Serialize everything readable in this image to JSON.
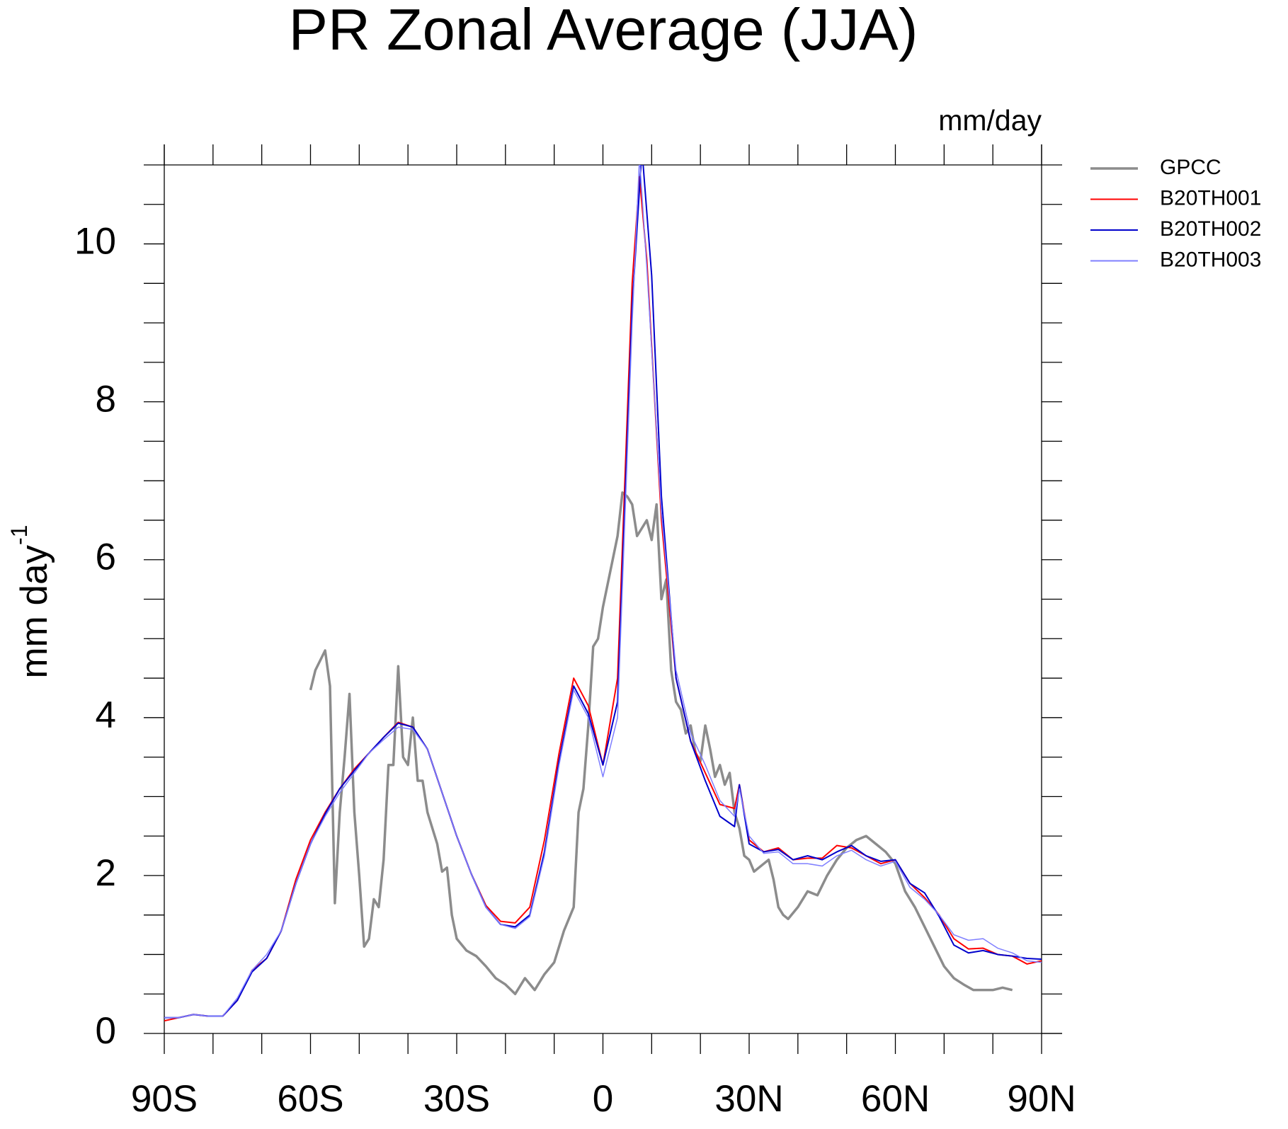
{
  "chart_data": {
    "type": "line",
    "title": "PR Zonal Average (JJA)",
    "units": "mm/day",
    "y_label": "mm day",
    "y_label_superscript": "-1",
    "xlim": [
      -90,
      90
    ],
    "xticks": [
      {
        "value": -90,
        "label": "90S"
      },
      {
        "value": -60,
        "label": "60S"
      },
      {
        "value": -30,
        "label": "30S"
      },
      0,
      {
        "value": 30,
        "label": "30N"
      },
      {
        "value": 60,
        "label": "60N"
      },
      {
        "value": 90,
        "label": "90N"
      }
    ],
    "xminorticks": [
      -80,
      -70,
      -50,
      -40,
      -20,
      -10,
      10,
      20,
      40,
      50,
      70,
      80
    ],
    "ylim": [
      0,
      11
    ],
    "yticks": [
      0,
      2,
      4,
      6,
      8,
      10
    ],
    "yminorticks": [
      0.5,
      1,
      1.5,
      2.5,
      3,
      3.5,
      4.5,
      5,
      5.5,
      6.5,
      7,
      7.5,
      8.5,
      9,
      9.5,
      10.5,
      11
    ],
    "legend": "outside-top-right",
    "series": [
      {
        "name": "GPCC",
        "color": "#8c8c8c",
        "x": [
          -60,
          -59,
          -57,
          -56,
          -55,
          -54,
          -53,
          -52,
          -51,
          -50,
          -49,
          -48,
          -47,
          -46,
          -45,
          -44,
          -43,
          -42,
          -41,
          -40,
          -39,
          -38,
          -37,
          -36,
          -35,
          -34,
          -33,
          -32,
          -31,
          -30,
          -28,
          -26,
          -24,
          -22,
          -20,
          -18,
          -16,
          -14,
          -12,
          -10,
          -8,
          -6,
          -5,
          -4,
          -3,
          -2,
          -1,
          0,
          1,
          2,
          3,
          4,
          5,
          6,
          7,
          8,
          9,
          10,
          11,
          12,
          13,
          14,
          15,
          16,
          17,
          18,
          19,
          20,
          21,
          22,
          23,
          24,
          25,
          26,
          27,
          28,
          29,
          30,
          31,
          33,
          34,
          35,
          36,
          37,
          38,
          40,
          42,
          44,
          46,
          48,
          50,
          52,
          54,
          56,
          58,
          60,
          62,
          64,
          66,
          68,
          70,
          72,
          74,
          76,
          78,
          80,
          82,
          84
        ],
        "values": [
          4.35,
          4.6,
          4.85,
          4.4,
          1.65,
          2.8,
          3.5,
          4.3,
          2.8,
          2.0,
          1.1,
          1.2,
          1.7,
          1.6,
          2.2,
          3.4,
          3.4,
          4.65,
          3.5,
          3.4,
          4.0,
          3.2,
          3.2,
          2.8,
          2.6,
          2.4,
          2.05,
          2.1,
          1.5,
          1.2,
          1.05,
          0.98,
          0.85,
          0.7,
          0.62,
          0.5,
          0.7,
          0.55,
          0.75,
          0.9,
          1.3,
          1.6,
          2.8,
          3.1,
          3.9,
          4.9,
          5.0,
          5.4,
          5.7,
          6.0,
          6.3,
          6.85,
          6.8,
          6.7,
          6.3,
          6.4,
          6.5,
          6.25,
          6.7,
          5.5,
          5.75,
          4.6,
          4.2,
          4.1,
          3.8,
          3.9,
          3.55,
          3.45,
          3.9,
          3.6,
          3.25,
          3.4,
          3.15,
          3.3,
          2.8,
          2.6,
          2.25,
          2.2,
          2.05,
          2.15,
          2.2,
          1.95,
          1.6,
          1.5,
          1.45,
          1.6,
          1.8,
          1.75,
          2.0,
          2.2,
          2.35,
          2.45,
          2.5,
          2.4,
          2.3,
          2.15,
          1.8,
          1.6,
          1.35,
          1.1,
          0.85,
          0.7,
          0.62,
          0.55,
          0.55,
          0.55,
          0.58,
          0.55
        ]
      },
      {
        "name": "B20TH001",
        "color": "#ff0000",
        "x": [
          -90,
          -87,
          -84,
          -81,
          -78,
          -75,
          -72,
          -69,
          -66,
          -63,
          -60,
          -57,
          -54,
          -51,
          -48,
          -45,
          -42,
          -39,
          -36,
          -33,
          -30,
          -27,
          -24,
          -21,
          -18,
          -15,
          -12,
          -9,
          -6,
          -3,
          0,
          3,
          6,
          7.5,
          9,
          12,
          15,
          18,
          21,
          24,
          27,
          28,
          30,
          33,
          36,
          39,
          42,
          45,
          48,
          51,
          54,
          57,
          60,
          63,
          66,
          69,
          72,
          75,
          78,
          81,
          84,
          87,
          90
        ],
        "values": [
          0.16,
          0.2,
          0.24,
          0.22,
          0.22,
          0.42,
          0.8,
          0.95,
          1.3,
          1.95,
          2.45,
          2.8,
          3.1,
          3.35,
          3.55,
          3.75,
          3.94,
          3.88,
          3.6,
          3.05,
          2.5,
          2.02,
          1.62,
          1.42,
          1.4,
          1.6,
          2.45,
          3.55,
          4.5,
          4.15,
          3.4,
          4.5,
          9.5,
          10.85,
          9.8,
          6.5,
          4.5,
          3.7,
          3.3,
          2.9,
          2.85,
          3.15,
          2.45,
          2.3,
          2.35,
          2.2,
          2.22,
          2.22,
          2.38,
          2.35,
          2.25,
          2.15,
          2.2,
          1.9,
          1.72,
          1.5,
          1.2,
          1.07,
          1.08,
          1.0,
          0.98,
          0.88,
          0.92
        ]
      },
      {
        "name": "B20TH002",
        "color": "#0000cc",
        "x": [
          -90,
          -87,
          -84,
          -81,
          -78,
          -75,
          -72,
          -69,
          -66,
          -63,
          -60,
          -57,
          -54,
          -51,
          -48,
          -45,
          -42,
          -39,
          -36,
          -33,
          -30,
          -27,
          -24,
          -21,
          -18,
          -15,
          -12,
          -9,
          -6,
          -3,
          0,
          3,
          6,
          8,
          10,
          12,
          15,
          18,
          21,
          24,
          27,
          28,
          30,
          33,
          36,
          39,
          42,
          45,
          48,
          51,
          54,
          57,
          60,
          63,
          66,
          69,
          72,
          75,
          78,
          81,
          84,
          87,
          90
        ],
        "values": [
          0.2,
          0.2,
          0.24,
          0.22,
          0.22,
          0.42,
          0.78,
          0.95,
          1.3,
          1.9,
          2.4,
          2.78,
          3.1,
          3.33,
          3.55,
          3.75,
          3.93,
          3.88,
          3.6,
          3.05,
          2.5,
          2.02,
          1.6,
          1.38,
          1.35,
          1.5,
          2.3,
          3.45,
          4.4,
          4.05,
          3.4,
          4.2,
          9.2,
          11.2,
          9.6,
          6.8,
          4.5,
          3.7,
          3.2,
          2.75,
          2.62,
          3.15,
          2.4,
          2.3,
          2.33,
          2.2,
          2.25,
          2.2,
          2.3,
          2.38,
          2.25,
          2.18,
          2.2,
          1.9,
          1.78,
          1.48,
          1.12,
          1.02,
          1.05,
          1.0,
          0.98,
          0.95,
          0.94
        ]
      },
      {
        "name": "B20TH003",
        "color": "#7f7fff",
        "x": [
          -90,
          -87,
          -84,
          -81,
          -78,
          -75,
          -72,
          -69,
          -66,
          -63,
          -60,
          -57,
          -54,
          -51,
          -48,
          -45,
          -42,
          -39,
          -36,
          -33,
          -30,
          -27,
          -24,
          -21,
          -18,
          -15,
          -12,
          -9,
          -6,
          -3,
          0,
          3,
          6,
          7.5,
          9,
          12,
          15,
          18,
          21,
          24,
          27,
          28,
          30,
          33,
          36,
          39,
          42,
          45,
          48,
          51,
          54,
          57,
          60,
          63,
          66,
          69,
          72,
          75,
          78,
          81,
          84,
          87,
          90
        ],
        "values": [
          0.2,
          0.2,
          0.24,
          0.22,
          0.22,
          0.45,
          0.8,
          1.0,
          1.3,
          1.9,
          2.4,
          2.75,
          3.05,
          3.3,
          3.55,
          3.72,
          3.88,
          3.85,
          3.6,
          3.05,
          2.5,
          2.02,
          1.6,
          1.38,
          1.33,
          1.48,
          2.25,
          3.4,
          4.35,
          4.0,
          3.25,
          4.0,
          9.0,
          11.1,
          9.7,
          6.6,
          4.6,
          3.8,
          3.4,
          2.95,
          2.75,
          3.1,
          2.5,
          2.28,
          2.3,
          2.15,
          2.15,
          2.12,
          2.25,
          2.32,
          2.2,
          2.12,
          2.18,
          1.85,
          1.7,
          1.5,
          1.25,
          1.18,
          1.2,
          1.08,
          1.02,
          0.92,
          0.9
        ]
      }
    ]
  }
}
